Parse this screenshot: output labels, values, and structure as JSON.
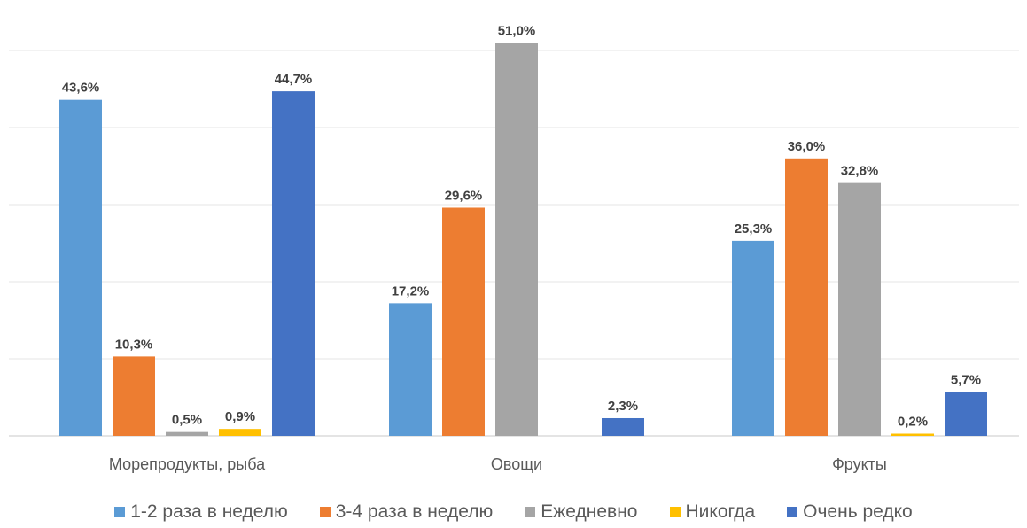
{
  "chart_data": {
    "type": "bar",
    "title": "",
    "xlabel": "",
    "ylabel": "",
    "ylim": [
      0,
      52
    ],
    "grid": true,
    "legend_position": "bottom",
    "categories": [
      "Морепродукты, рыба",
      "Овощи",
      "Фрукты"
    ],
    "series": [
      {
        "name": "1-2 раза в неделю",
        "color": "#5b9bd5",
        "values": [
          43.6,
          17.2,
          25.3
        ],
        "labels": [
          "43,6%",
          "17,2%",
          "25,3%"
        ]
      },
      {
        "name": "3-4 раза в неделю",
        "color": "#ed7d31",
        "values": [
          10.3,
          29.6,
          36.0
        ],
        "labels": [
          "10,3%",
          "29,6%",
          "36,0%"
        ]
      },
      {
        "name": "Ежедневно",
        "color": "#a5a5a5",
        "values": [
          0.5,
          51.0,
          32.8
        ],
        "labels": [
          "0,5%",
          "51,0%",
          "32,8%"
        ]
      },
      {
        "name": "Никогда",
        "color": "#ffc000",
        "values": [
          0.9,
          null,
          0.2
        ],
        "labels": [
          "0,9%",
          null,
          "0,2%"
        ]
      },
      {
        "name": "Очень редко",
        "color": "#4472c4",
        "values": [
          44.7,
          2.3,
          5.7
        ],
        "labels": [
          "44,7%",
          "2,3%",
          "5,7%"
        ]
      }
    ]
  }
}
